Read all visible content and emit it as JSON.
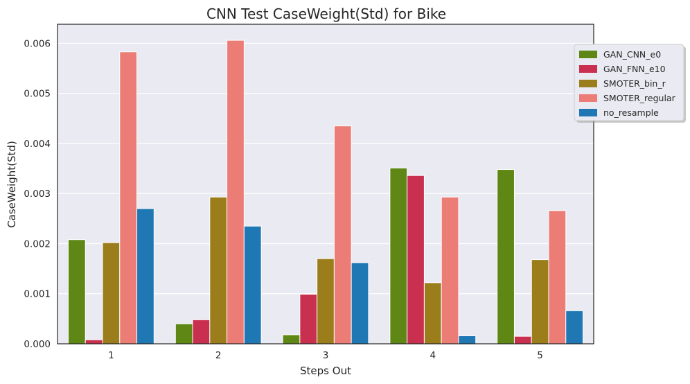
{
  "chart_data": {
    "type": "bar",
    "title": "CNN Test CaseWeight(Std) for Bike",
    "xlabel": "Steps Out",
    "ylabel": "CaseWeight(Std)",
    "categories": [
      "1",
      "2",
      "3",
      "4",
      "5"
    ],
    "ylim": [
      0,
      0.00638
    ],
    "yticks": [
      "0.000",
      "0.001",
      "0.002",
      "0.003",
      "0.004",
      "0.005",
      "0.006"
    ],
    "grid": true,
    "legend_position": "top-right",
    "series": [
      {
        "name": "GAN_CNN_e0",
        "color": "#5f8715",
        "values": [
          0.00208,
          0.0004,
          0.00018,
          0.00351,
          0.00348
        ]
      },
      {
        "name": "GAN_FNN_e10",
        "color": "#c9304f",
        "values": [
          8e-05,
          0.00048,
          0.00099,
          0.00336,
          0.00015
        ]
      },
      {
        "name": "SMOTER_bin_r",
        "color": "#9c7d1c",
        "values": [
          0.00202,
          0.00293,
          0.0017,
          0.00122,
          0.00168
        ]
      },
      {
        "name": "SMOTER_regular",
        "color": "#eb7d76",
        "values": [
          0.00583,
          0.00606,
          0.00435,
          0.00293,
          0.00266
        ]
      },
      {
        "name": "no_resample",
        "color": "#1f77b4",
        "values": [
          0.0027,
          0.00235,
          0.00162,
          0.00016,
          0.00066
        ]
      }
    ]
  }
}
